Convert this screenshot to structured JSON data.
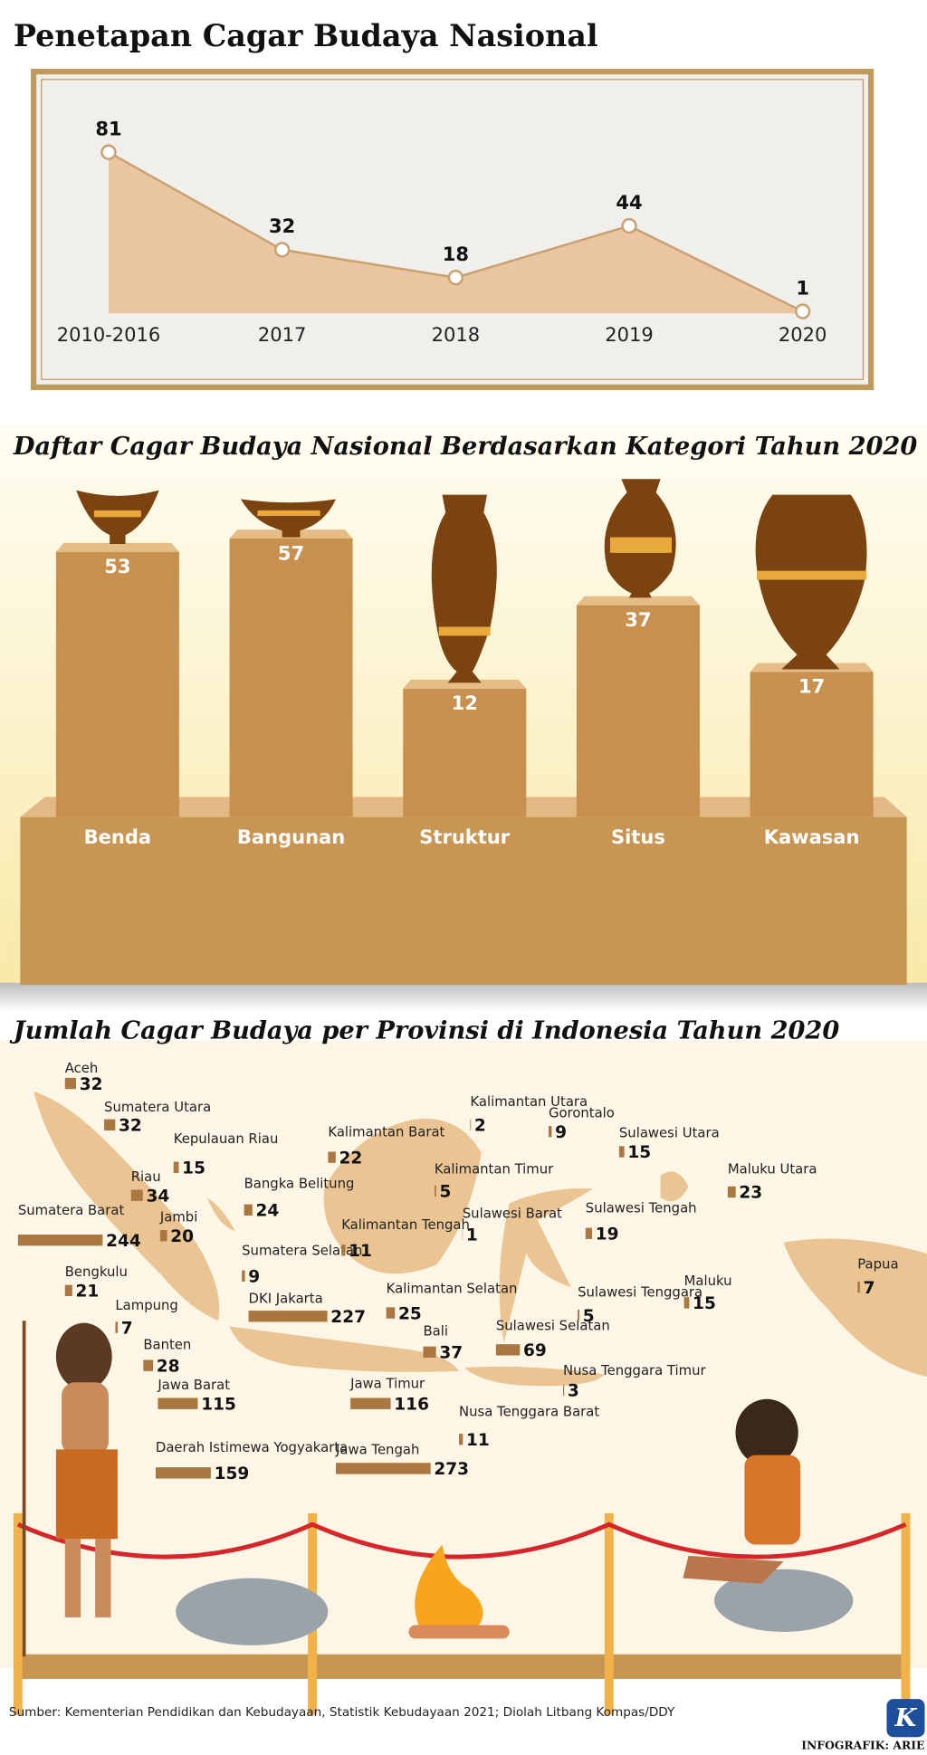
{
  "chart_data": [
    {
      "type": "line",
      "title": "Penetapan Cagar Budaya Nasional",
      "categories": [
        "2010-2016",
        "2017",
        "2018",
        "2019",
        "2020"
      ],
      "values": [
        81,
        32,
        18,
        44,
        1
      ],
      "color": "#c9a06f"
    },
    {
      "type": "bar",
      "title": "Daftar Cagar Budaya Nasional Berdasarkan Kategori Tahun 2020",
      "categories": [
        "Benda",
        "Bangunan",
        "Struktur",
        "Situs",
        "Kawasan"
      ],
      "values": [
        53,
        57,
        12,
        37,
        17
      ],
      "color": "#c8904e"
    },
    {
      "type": "map",
      "title": "Jumlah Cagar Budaya per Provinsi di Indonesia Tahun 2020",
      "categories": [
        "Aceh",
        "Sumatera Utara",
        "Kepulauan Riau",
        "Riau",
        "Sumatera Barat",
        "Jambi",
        "Bangka Belitung",
        "Sumatera Selatan",
        "Bengkulu",
        "Lampung",
        "Banten",
        "DKI Jakarta",
        "Jawa Barat",
        "Daerah Istimewa Yogyakarta",
        "Jawa Tengah",
        "Jawa Timur",
        "Bali",
        "Nusa Tenggara Barat",
        "Nusa Tenggara Timur",
        "Kalimantan Barat",
        "Kalimantan Tengah",
        "Kalimantan Selatan",
        "Kalimantan Timur",
        "Kalimantan Utara",
        "Gorontalo",
        "Sulawesi Utara",
        "Maluku Utara",
        "Sulawesi Barat",
        "Sulawesi Tengah",
        "Sulawesi Selatan",
        "Sulawesi Tenggara",
        "Maluku",
        "Papua"
      ],
      "values": [
        32,
        32,
        15,
        34,
        244,
        20,
        24,
        9,
        21,
        7,
        28,
        227,
        115,
        159,
        273,
        116,
        37,
        11,
        3,
        22,
        11,
        25,
        5,
        2,
        9,
        15,
        23,
        1,
        19,
        69,
        5,
        15,
        7
      ],
      "color": "#a9773f"
    }
  ],
  "source": "Sumber: Kementerian Pendidikan dan Kebudayaan, Statistik Kebudayaan 2021; Diolah Litbang Kompas/DDY",
  "credit": "INFOGRAFIK: ARIE",
  "logo": "K"
}
